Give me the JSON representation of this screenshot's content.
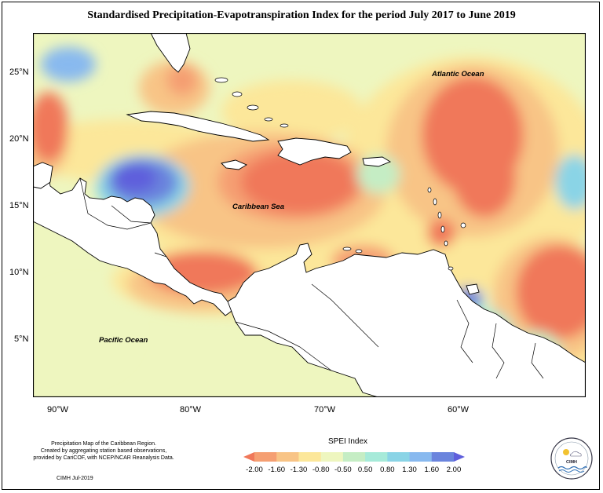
{
  "title": "Standardised Precipitation-Evapotranspiration Index for the period July 2017 to June 2019",
  "map": {
    "lat_labels": [
      "25°N",
      "20°N",
      "15°N",
      "10°N",
      "5°N"
    ],
    "lon_labels": [
      "90°W",
      "80°W",
      "70°W",
      "60°W"
    ],
    "ocean_labels": {
      "atlantic": "Atlantic Ocean",
      "caribbean": "Caribbean Sea",
      "pacific": "Pacific Ocean"
    }
  },
  "legend": {
    "title": "SPEI Index",
    "ticks": [
      "-2.00",
      "-1.60",
      "-1.30",
      "-0.80",
      "-0.50",
      "0.50",
      "0.80",
      "1.30",
      "1.60",
      "2.00"
    ],
    "colors": [
      "#f0785a",
      "#f59f72",
      "#f8c486",
      "#fce79a",
      "#eef6bf",
      "#c5edc4",
      "#a6ead9",
      "#8ad4e6",
      "#88b9ef",
      "#6a84dd",
      "#5f5fdc"
    ]
  },
  "footnote": {
    "line1": "Precipitation Map of the Caribbean Region.",
    "line2": "Created by aggregating station based observations,",
    "line3": "provided by CariCOF, with NCEP/NCAR Reanalysis Data."
  },
  "credit": "CIMH Jul-2019",
  "logo": {
    "name": "CIMH"
  }
}
